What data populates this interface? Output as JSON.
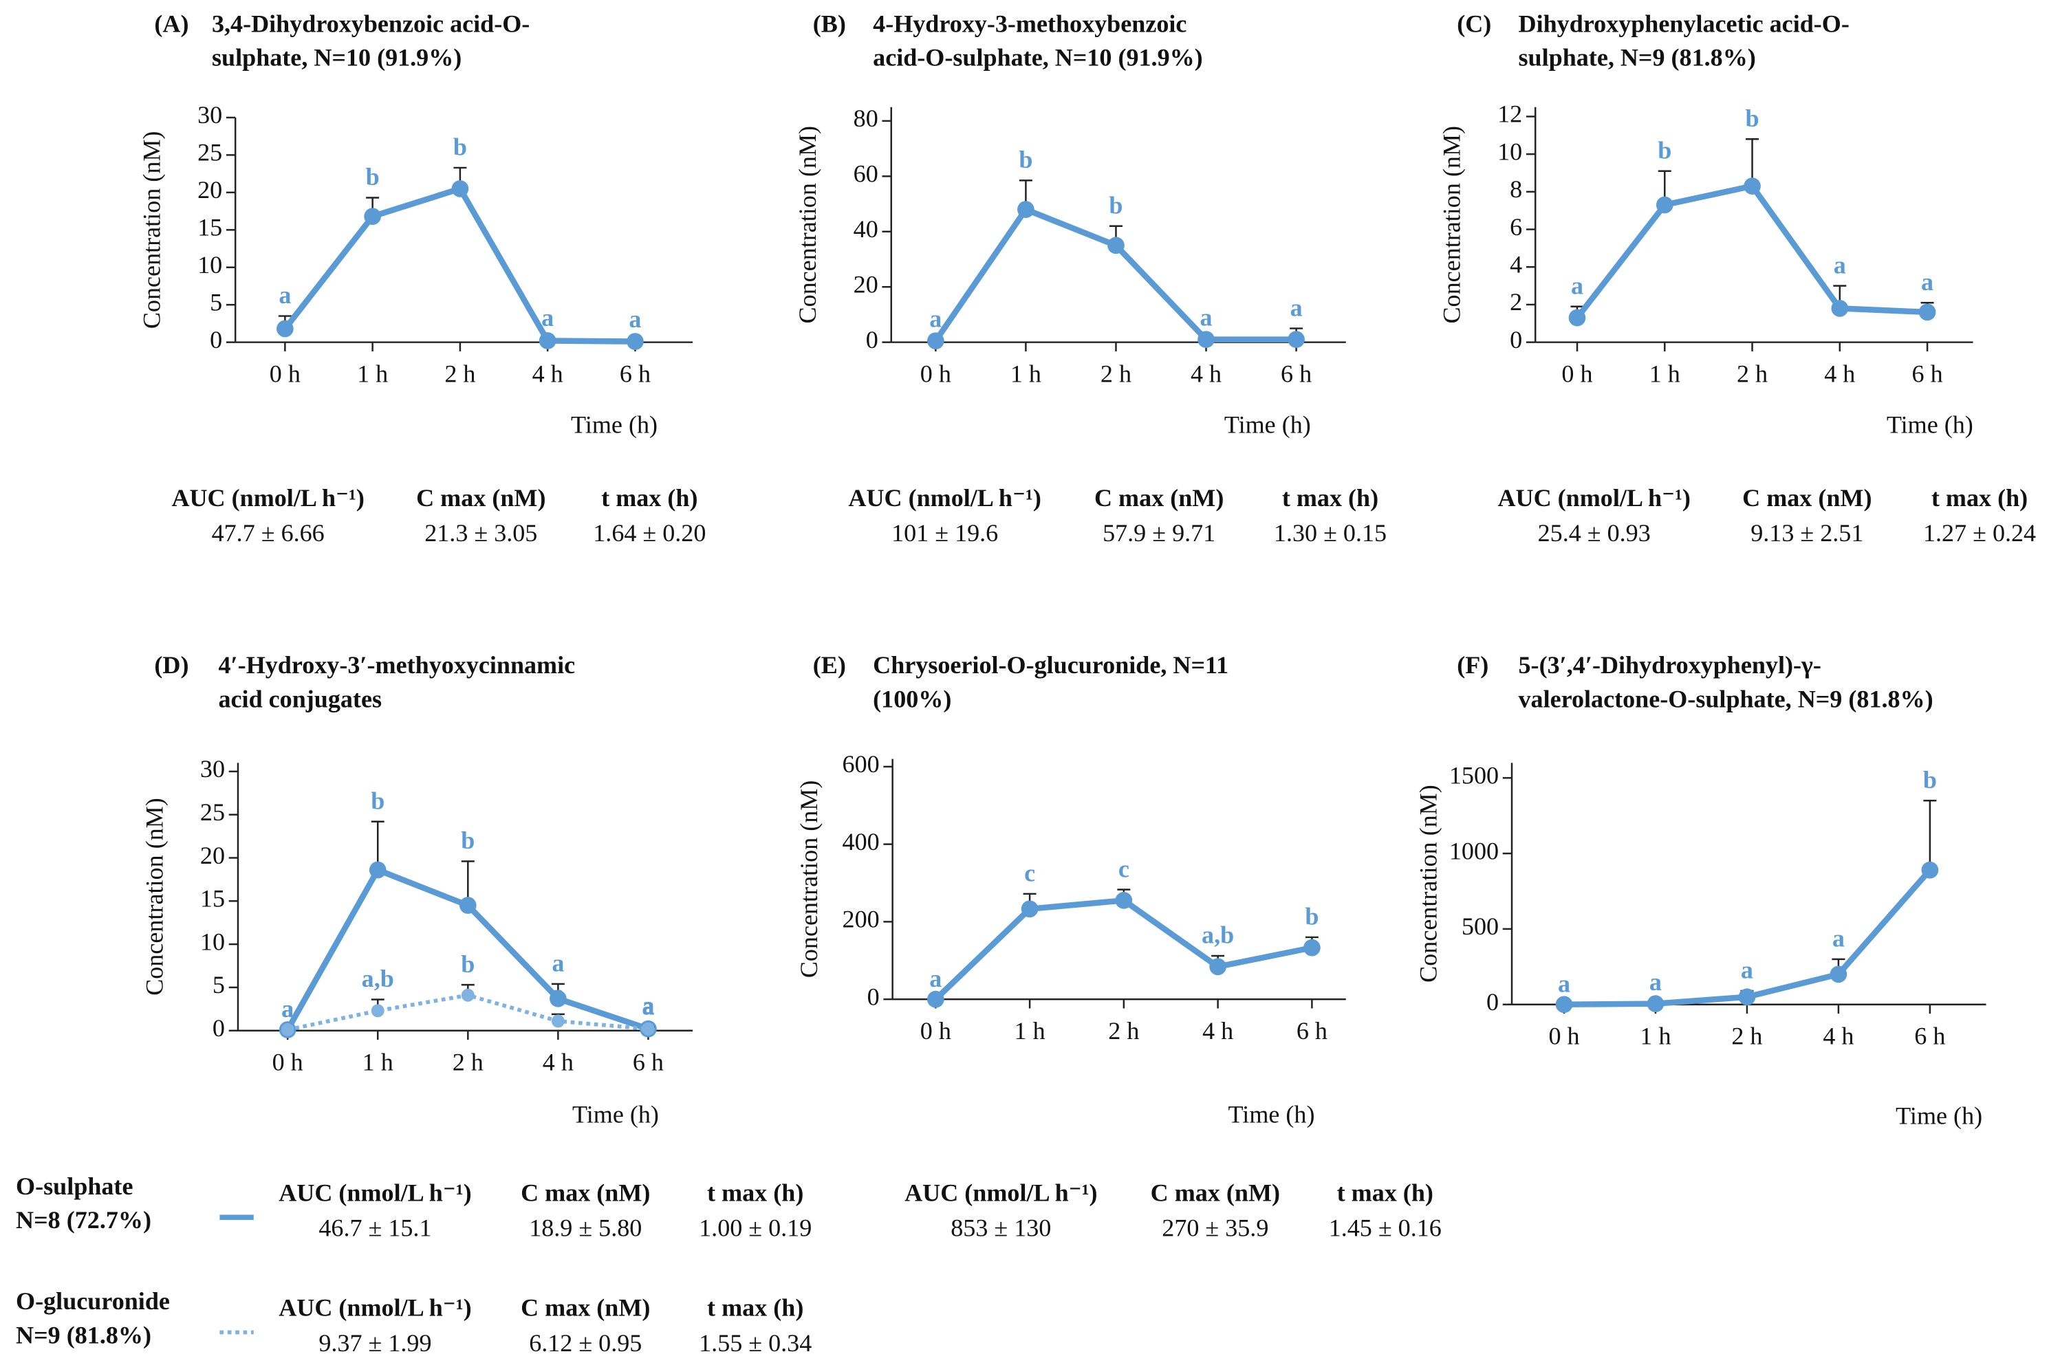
{
  "chart_data": [
    {
      "type": "line",
      "panel": "(A)",
      "title": [
        "3,4-Dihydroxybenzoic acid-O-",
        "sulphate, N=10 (91.9%)"
      ],
      "categories": [
        "0 h",
        "1 h",
        "2 h",
        "4 h",
        "6 h"
      ],
      "xlabel": "Time (h)",
      "ylabel": "Concentration (nM)",
      "ylim": [
        0,
        30
      ],
      "yticks": [
        0,
        5,
        10,
        15,
        20,
        25,
        30
      ],
      "series": [
        {
          "color": "#5b9bd5",
          "values": [
            1.8,
            16.8,
            20.5,
            0.2,
            0.1
          ],
          "errors": [
            1.7,
            2.5,
            2.8,
            0.3,
            0.2
          ],
          "letters": [
            "a",
            "b",
            "b",
            "a",
            "a"
          ],
          "stats": [
            {
              "name": "AUC (nmol/L h⁻¹)",
              "value": "47.7 ± 6.66"
            },
            {
              "name": "C max (nM)",
              "value": "21.3 ± 3.05"
            },
            {
              "name": "t max (h)",
              "value": "1.64 ± 0.20"
            }
          ]
        }
      ]
    },
    {
      "type": "line",
      "panel": "(B)",
      "title": [
        "4-Hydroxy-3-methoxybenzoic",
        "acid-O-sulphate, N=10 (91.9%)"
      ],
      "categories": [
        "0 h",
        "1 h",
        "2 h",
        "4 h",
        "6 h"
      ],
      "xlabel": "Time (h)",
      "ylabel": "Concentration (nM)",
      "ylim": [
        0,
        85
      ],
      "yticks": [
        0,
        20,
        40,
        60,
        80
      ],
      "series": [
        {
          "color": "#5b9bd5",
          "values": [
            0.5,
            48,
            35,
            1,
            1
          ],
          "errors": [
            0.5,
            10.5,
            7,
            0.5,
            4
          ],
          "letters": [
            "a",
            "b",
            "b",
            "a",
            "a"
          ],
          "stats": [
            {
              "name": "AUC (nmol/L h⁻¹)",
              "value": "101 ± 19.6"
            },
            {
              "name": "C max (nM)",
              "value": "57.9 ± 9.71"
            },
            {
              "name": "t max (h)",
              "value": "1.30 ± 0.15"
            }
          ]
        }
      ]
    },
    {
      "type": "line",
      "panel": "(C)",
      "title": [
        "Dihydroxyphenylacetic acid-O-",
        "sulphate, N=9 (81.8%)"
      ],
      "categories": [
        "0 h",
        "1 h",
        "2 h",
        "4 h",
        "6 h"
      ],
      "xlabel": "Time (h)",
      "ylabel": "Concentration (nM)",
      "ylim": [
        0,
        12.5
      ],
      "yticks": [
        0,
        2,
        4,
        6,
        8,
        10,
        12
      ],
      "series": [
        {
          "color": "#5b9bd5",
          "values": [
            1.3,
            7.3,
            8.3,
            1.8,
            1.6
          ],
          "errors": [
            0.6,
            1.8,
            2.5,
            1.2,
            0.5
          ],
          "letters": [
            "a",
            "b",
            "b",
            "a",
            "a"
          ],
          "stats": [
            {
              "name": "AUC (nmol/L h⁻¹)",
              "value": "25.4 ± 0.93"
            },
            {
              "name": "C max (nM)",
              "value": "9.13 ± 2.51"
            },
            {
              "name": "t max (h)",
              "value": "1.27 ± 0.24"
            }
          ]
        }
      ]
    },
    {
      "type": "line",
      "panel": "(D)",
      "title": [
        "4′-Hydroxy-3′-methyoxycinnamic",
        "acid conjugates"
      ],
      "categories": [
        "0 h",
        "1 h",
        "2 h",
        "4 h",
        "6 h"
      ],
      "xlabel": "Time (h)",
      "ylabel": "Concentration (nM)",
      "ylim": [
        0,
        31
      ],
      "yticks": [
        0,
        5,
        10,
        15,
        20,
        25,
        30
      ],
      "series": [
        {
          "name": "O-sulphate",
          "n": "N=8 (72.7%)",
          "color": "#5b9bd5",
          "values": [
            0.1,
            18.6,
            14.5,
            3.7,
            0.2
          ],
          "errors": [
            0,
            5.6,
            5.1,
            1.7,
            0.3
          ],
          "letters": [
            "a",
            "b",
            "b",
            "a",
            "a"
          ],
          "stats": [
            {
              "name": "AUC (nmol/L h⁻¹)",
              "value": "46.7 ± 15.1"
            },
            {
              "name": "C max (nM)",
              "value": "18.9 ± 5.80"
            },
            {
              "name": "t max (h)",
              "value": "1.00 ± 0.19"
            }
          ]
        },
        {
          "name": "O-glucuronide",
          "n": "N=9 (81.8%)",
          "color": "#7fb2e0",
          "dashed": true,
          "values": [
            0.1,
            2.3,
            4.1,
            1.1,
            0.2
          ],
          "errors": [
            0,
            1.3,
            1.2,
            0.8,
            0.2
          ],
          "letters": [
            "a",
            "a,b",
            "b",
            "a",
            "a"
          ],
          "stats": [
            {
              "name": "AUC (nmol/L h⁻¹)",
              "value": "9.37 ± 1.99"
            },
            {
              "name": "C max (nM)",
              "value": "6.12 ± 0.95"
            },
            {
              "name": "t max (h)",
              "value": "1.55 ± 0.34"
            }
          ]
        }
      ]
    },
    {
      "type": "line",
      "panel": "(E)",
      "title": [
        "Chrysoeriol-O-glucuronide, N=11",
        "(100%)"
      ],
      "categories": [
        "0 h",
        "1 h",
        "2 h",
        "4 h",
        "6 h"
      ],
      "xlabel": "Time (h)",
      "ylabel": "Concentration (nM)",
      "ylim": [
        0,
        620
      ],
      "yticks": [
        0,
        200,
        400,
        600
      ],
      "series": [
        {
          "color": "#5b9bd5",
          "values": [
            0,
            233,
            255,
            84,
            133
          ],
          "errors": [
            0,
            39,
            28,
            28,
            27
          ],
          "letters": [
            "a",
            "c",
            "c",
            "a,b",
            "b"
          ],
          "stats": [
            {
              "name": "AUC (nmol/L h⁻¹)",
              "value": "853 ± 130"
            },
            {
              "name": "C max (nM)",
              "value": "270 ± 35.9"
            },
            {
              "name": "t max (h)",
              "value": "1.45 ± 0.16"
            }
          ]
        }
      ]
    },
    {
      "type": "line",
      "panel": "(F)",
      "title": [
        "5-(3′,4′-Dihydroxyphenyl)-γ-",
        "valerolactone-O-sulphate, N=9 (81.8%)"
      ],
      "categories": [
        "0 h",
        "1 h",
        "2 h",
        "4 h",
        "6 h"
      ],
      "xlabel": "Time (h)",
      "ylabel": "Concentration (nM)",
      "ylim": [
        0,
        1600
      ],
      "yticks": [
        0,
        500,
        1000,
        1500
      ],
      "series": [
        {
          "color": "#5b9bd5",
          "values": [
            0,
            5,
            50,
            200,
            890
          ],
          "errors": [
            0,
            5,
            40,
            100,
            460
          ],
          "letters": [
            "a",
            "a",
            "a",
            "a",
            "b"
          ]
        }
      ]
    }
  ]
}
